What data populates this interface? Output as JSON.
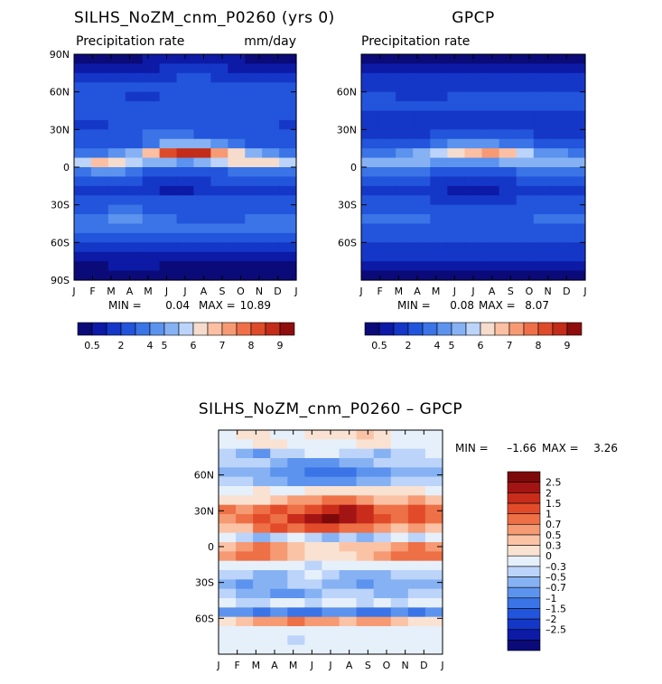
{
  "colors": {
    "scale": [
      "#0a0a78",
      "#0c1aa6",
      "#1537c8",
      "#2255dc",
      "#3a74e6",
      "#5c93ee",
      "#86b2f4",
      "#bcd4fa",
      "#f6dccc",
      "#fbbfa3",
      "#f79a73",
      "#ef7048",
      "#de4b2a",
      "#c22c18",
      "#8f0d0d"
    ],
    "diff": [
      "#0a0a78",
      "#0c1aa6",
      "#1537c8",
      "#2255dc",
      "#3a74e6",
      "#5c93ee",
      "#86b2f4",
      "#bcd4fa",
      "#e6f0fb",
      "#f9e2d2",
      "#fbc3a6",
      "#f59a73",
      "#ee7046",
      "#e24b2a",
      "#c92c1a",
      "#a31414",
      "#7d0a0a"
    ]
  },
  "charts": [
    {
      "type": "contour",
      "title": "SILHS_NoZM_cnm_P0260 (yrs 0)",
      "variable": "Precipitation rate",
      "units": "mm/day",
      "x_ticks": [
        "J",
        "F",
        "M",
        "A",
        "M",
        "J",
        "J",
        "A",
        "S",
        "O",
        "N",
        "D",
        "J"
      ],
      "y_ticks": [
        "90N",
        "60N",
        "30N",
        "0",
        "30S",
        "60S",
        "90S"
      ],
      "stats": {
        "min_label": "MIN =",
        "min": "0.04",
        "max_label": "MAX =",
        "max": "10.89"
      },
      "colorbar_labels": [
        "0.5",
        "2",
        "4",
        "5",
        "6",
        "7",
        "8",
        "9"
      ]
    },
    {
      "type": "contour",
      "title": "GPCP",
      "variable": "Precipitation rate",
      "x_ticks": [
        "J",
        "F",
        "M",
        "A",
        "M",
        "J",
        "J",
        "A",
        "S",
        "O",
        "N",
        "D",
        "J"
      ],
      "y_ticks": [
        "60N",
        "30N",
        "0",
        "30S",
        "60S"
      ],
      "stats": {
        "min_label": "MIN =",
        "min": "0.08",
        "max_label": "MAX =",
        "max": "8.07"
      },
      "colorbar_labels": [
        "0.5",
        "2",
        "4",
        "5",
        "6",
        "7",
        "8",
        "9"
      ]
    },
    {
      "type": "contour",
      "title": "SILHS_NoZM_cnm_P0260 – GPCP",
      "x_ticks": [
        "J",
        "F",
        "M",
        "A",
        "M",
        "J",
        "J",
        "A",
        "S",
        "O",
        "N",
        "D",
        "J"
      ],
      "y_ticks": [
        "60N",
        "30N",
        "0",
        "30S",
        "60S"
      ],
      "stats": {
        "min_label": "MIN =",
        "min": "–1.66",
        "max_label": "MAX =",
        "max": "3.26"
      },
      "colorbar_labels": [
        "2.5",
        "2",
        "1.5",
        "1",
        "0.7",
        "0.5",
        "0.3",
        "0",
        "–0.3",
        "–0.5",
        "–0.7",
        "–1",
        "–1.5",
        "–2",
        "–2.5"
      ]
    }
  ],
  "chart_data": [
    {
      "type": "heatmap",
      "title": "SILHS_NoZM_cnm_P0260 (yrs 0)",
      "subtitle": "Precipitation rate",
      "units": "mm/day",
      "x": [
        "J",
        "F",
        "M",
        "A",
        "M",
        "J",
        "J",
        "A",
        "S",
        "O",
        "N",
        "D",
        "J"
      ],
      "ylabel_ticks": [
        "90N",
        "60N",
        "30N",
        "0",
        "30S",
        "60S",
        "90S"
      ],
      "min": 0.04,
      "max": 10.89,
      "levels": [
        0.5,
        1,
        2,
        3,
        4,
        4.5,
        5,
        5.5,
        6,
        6.5,
        7,
        7.5,
        8,
        9
      ],
      "rows": [
        [
          0,
          0,
          0,
          0,
          1,
          1,
          1,
          1,
          1,
          1,
          0,
          0,
          0
        ],
        [
          1,
          1,
          1,
          1,
          1,
          2,
          2,
          2,
          2,
          1,
          1,
          1,
          1
        ],
        [
          2,
          2,
          2,
          2,
          2,
          2,
          3,
          3,
          2,
          2,
          2,
          2,
          2
        ],
        [
          3,
          3,
          3,
          3,
          3,
          3,
          3,
          3,
          3,
          3,
          3,
          3,
          3
        ],
        [
          3,
          3,
          3,
          2,
          2,
          3,
          3,
          3,
          3,
          3,
          3,
          3,
          3
        ],
        [
          3,
          3,
          3,
          3,
          3,
          3,
          3,
          3,
          3,
          3,
          3,
          3,
          3
        ],
        [
          3,
          3,
          3,
          3,
          3,
          3,
          3,
          3,
          3,
          3,
          3,
          3,
          3
        ],
        [
          2,
          2,
          3,
          3,
          3,
          3,
          3,
          3,
          3,
          3,
          3,
          3,
          2
        ],
        [
          3,
          3,
          3,
          3,
          4,
          4,
          4,
          3,
          3,
          3,
          3,
          3,
          3
        ],
        [
          3,
          3,
          3,
          3,
          4,
          6,
          6,
          6,
          5,
          4,
          3,
          3,
          3
        ],
        [
          4,
          4,
          5,
          6,
          9,
          12,
          13,
          13,
          10,
          8,
          6,
          5,
          4
        ],
        [
          7,
          9,
          8,
          7,
          6,
          6,
          5,
          6,
          7,
          8,
          8,
          8,
          7
        ],
        [
          4,
          5,
          5,
          4,
          3,
          3,
          3,
          3,
          3,
          4,
          4,
          4,
          4
        ],
        [
          3,
          3,
          3,
          3,
          2,
          2,
          2,
          2,
          3,
          3,
          3,
          3,
          3
        ],
        [
          2,
          2,
          2,
          2,
          2,
          1,
          1,
          2,
          2,
          2,
          2,
          2,
          2
        ],
        [
          3,
          3,
          3,
          3,
          3,
          3,
          3,
          3,
          3,
          3,
          3,
          3,
          3
        ],
        [
          3,
          3,
          4,
          4,
          3,
          3,
          3,
          3,
          3,
          3,
          3,
          3,
          3
        ],
        [
          4,
          4,
          5,
          5,
          4,
          4,
          3,
          3,
          3,
          3,
          4,
          4,
          4
        ],
        [
          4,
          4,
          4,
          4,
          4,
          4,
          4,
          4,
          4,
          4,
          4,
          4,
          4
        ],
        [
          3,
          3,
          3,
          3,
          3,
          3,
          3,
          3,
          3,
          3,
          3,
          3,
          3
        ],
        [
          2,
          2,
          2,
          2,
          2,
          2,
          2,
          2,
          2,
          2,
          2,
          2,
          2
        ],
        [
          1,
          1,
          1,
          1,
          1,
          1,
          1,
          1,
          1,
          1,
          1,
          1,
          1
        ],
        [
          0,
          0,
          1,
          1,
          1,
          0,
          0,
          0,
          0,
          0,
          0,
          0,
          0
        ],
        [
          0,
          0,
          0,
          0,
          0,
          0,
          0,
          0,
          0,
          0,
          0,
          0,
          0
        ]
      ]
    },
    {
      "type": "heatmap",
      "title": "GPCP",
      "subtitle": "Precipitation rate",
      "x": [
        "J",
        "F",
        "M",
        "A",
        "M",
        "J",
        "J",
        "A",
        "S",
        "O",
        "N",
        "D",
        "J"
      ],
      "ylabel_ticks": [
        "60N",
        "30N",
        "0",
        "30S",
        "60S"
      ],
      "min": 0.08,
      "max": 8.07,
      "levels": [
        0.5,
        1,
        2,
        3,
        4,
        4.5,
        5,
        5.5,
        6,
        6.5,
        7,
        7.5,
        8,
        9
      ],
      "rows": [
        [
          0,
          0,
          0,
          0,
          0,
          0,
          0,
          0,
          0,
          0,
          0,
          0,
          0
        ],
        [
          1,
          1,
          1,
          1,
          1,
          1,
          1,
          1,
          1,
          1,
          1,
          1,
          1
        ],
        [
          2,
          2,
          2,
          2,
          2,
          2,
          2,
          2,
          2,
          2,
          2,
          2,
          2
        ],
        [
          2,
          2,
          2,
          2,
          2,
          2,
          2,
          2,
          2,
          2,
          2,
          2,
          2
        ],
        [
          3,
          3,
          2,
          2,
          2,
          3,
          3,
          3,
          3,
          3,
          3,
          3,
          3
        ],
        [
          3,
          3,
          3,
          3,
          3,
          3,
          3,
          3,
          3,
          3,
          3,
          3,
          3
        ],
        [
          2,
          2,
          2,
          2,
          2,
          2,
          2,
          2,
          2,
          2,
          2,
          2,
          2
        ],
        [
          2,
          2,
          2,
          2,
          2,
          2,
          2,
          2,
          2,
          2,
          2,
          2,
          2
        ],
        [
          2,
          2,
          2,
          2,
          3,
          3,
          3,
          3,
          3,
          3,
          2,
          2,
          2
        ],
        [
          3,
          3,
          3,
          3,
          4,
          5,
          5,
          5,
          4,
          4,
          3,
          3,
          3
        ],
        [
          4,
          4,
          5,
          6,
          7,
          8,
          9,
          10,
          9,
          7,
          5,
          5,
          4
        ],
        [
          6,
          6,
          6,
          6,
          5,
          5,
          5,
          5,
          6,
          6,
          6,
          6,
          6
        ],
        [
          4,
          4,
          4,
          4,
          3,
          3,
          3,
          3,
          3,
          4,
          4,
          4,
          4
        ],
        [
          3,
          3,
          3,
          3,
          2,
          2,
          2,
          2,
          2,
          3,
          3,
          3,
          3
        ],
        [
          2,
          2,
          2,
          2,
          2,
          1,
          1,
          1,
          2,
          2,
          2,
          2,
          2
        ],
        [
          3,
          3,
          3,
          3,
          2,
          2,
          2,
          2,
          2,
          3,
          3,
          3,
          3
        ],
        [
          3,
          3,
          3,
          3,
          3,
          3,
          3,
          3,
          3,
          3,
          3,
          3,
          3
        ],
        [
          4,
          4,
          4,
          4,
          3,
          3,
          3,
          3,
          3,
          3,
          4,
          4,
          4
        ],
        [
          3,
          3,
          3,
          3,
          3,
          3,
          3,
          3,
          3,
          3,
          3,
          3,
          3
        ],
        [
          3,
          3,
          3,
          3,
          3,
          3,
          3,
          3,
          3,
          3,
          3,
          3,
          3
        ],
        [
          2,
          2,
          2,
          2,
          2,
          2,
          2,
          2,
          2,
          2,
          2,
          2,
          2
        ],
        [
          2,
          2,
          2,
          2,
          2,
          2,
          2,
          2,
          2,
          2,
          2,
          2,
          2
        ],
        [
          1,
          1,
          1,
          1,
          1,
          1,
          1,
          1,
          1,
          1,
          1,
          1,
          1
        ],
        [
          0,
          0,
          0,
          0,
          0,
          0,
          0,
          0,
          0,
          0,
          0,
          0,
          0
        ]
      ]
    },
    {
      "type": "heatmap",
      "title": "SILHS_NoZM_cnm_P0260 – GPCP",
      "x": [
        "J",
        "F",
        "M",
        "A",
        "M",
        "J",
        "J",
        "A",
        "S",
        "O",
        "N",
        "D",
        "J"
      ],
      "ylabel_ticks": [
        "60N",
        "30N",
        "0",
        "30S",
        "60S"
      ],
      "min": -1.66,
      "max": 3.26,
      "levels": [
        -2.5,
        -2,
        -1.5,
        -1,
        -0.7,
        -0.5,
        -0.3,
        0,
        0.3,
        0.5,
        0.7,
        1,
        1.5,
        2,
        2.5
      ],
      "rows": [
        [
          8,
          9,
          9,
          8,
          8,
          9,
          9,
          9,
          10,
          9,
          8,
          8,
          8
        ],
        [
          8,
          8,
          9,
          9,
          8,
          8,
          8,
          8,
          9,
          9,
          8,
          8,
          8
        ],
        [
          7,
          6,
          5,
          7,
          7,
          8,
          8,
          7,
          7,
          6,
          7,
          7,
          8
        ],
        [
          7,
          7,
          7,
          6,
          5,
          5,
          5,
          6,
          6,
          7,
          7,
          7,
          7
        ],
        [
          6,
          6,
          6,
          5,
          5,
          4,
          4,
          4,
          5,
          5,
          6,
          6,
          6
        ],
        [
          7,
          7,
          6,
          6,
          5,
          5,
          5,
          5,
          6,
          6,
          7,
          7,
          7
        ],
        [
          8,
          8,
          9,
          8,
          8,
          9,
          9,
          9,
          9,
          9,
          9,
          9,
          8
        ],
        [
          9,
          9,
          9,
          10,
          11,
          11,
          12,
          12,
          11,
          10,
          10,
          11,
          10
        ],
        [
          12,
          11,
          12,
          13,
          12,
          13,
          14,
          15,
          14,
          12,
          12,
          13,
          12
        ],
        [
          11,
          12,
          13,
          12,
          14,
          15,
          16,
          15,
          14,
          13,
          12,
          13,
          12
        ],
        [
          10,
          10,
          12,
          13,
          12,
          13,
          13,
          12,
          12,
          11,
          10,
          11,
          10
        ],
        [
          8,
          7,
          6,
          7,
          8,
          7,
          6,
          7,
          6,
          7,
          8,
          7,
          8
        ],
        [
          10,
          11,
          12,
          11,
          10,
          9,
          9,
          10,
          10,
          10,
          11,
          12,
          11
        ],
        [
          11,
          12,
          12,
          11,
          10,
          9,
          9,
          9,
          10,
          11,
          12,
          12,
          12
        ],
        [
          8,
          8,
          8,
          8,
          8,
          7,
          8,
          8,
          8,
          8,
          8,
          8,
          8
        ],
        [
          7,
          7,
          6,
          6,
          7,
          8,
          7,
          6,
          6,
          6,
          7,
          7,
          7
        ],
        [
          6,
          5,
          6,
          6,
          7,
          7,
          6,
          6,
          5,
          6,
          6,
          6,
          6
        ],
        [
          7,
          6,
          6,
          5,
          5,
          6,
          7,
          7,
          7,
          6,
          6,
          7,
          7
        ],
        [
          8,
          7,
          7,
          8,
          8,
          7,
          8,
          8,
          7,
          8,
          7,
          8,
          8
        ],
        [
          5,
          5,
          4,
          5,
          4,
          4,
          5,
          5,
          4,
          4,
          5,
          4,
          5
        ],
        [
          9,
          10,
          11,
          11,
          12,
          11,
          11,
          10,
          11,
          11,
          10,
          9,
          9
        ],
        [
          8,
          8,
          8,
          8,
          8,
          8,
          8,
          8,
          8,
          8,
          8,
          8,
          8
        ],
        [
          8,
          8,
          8,
          8,
          7,
          8,
          8,
          8,
          8,
          8,
          8,
          8,
          8
        ],
        [
          8,
          8,
          8,
          8,
          8,
          8,
          8,
          8,
          8,
          8,
          8,
          8,
          8
        ]
      ]
    }
  ]
}
